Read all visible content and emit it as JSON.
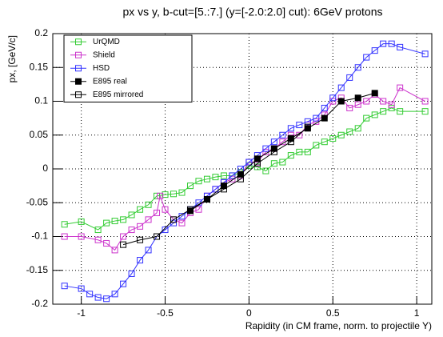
{
  "chart_data": {
    "type": "line",
    "title": "px vs y, b-cut=[5.:7.] (y=[-2.0:2.0] cut): 6GeV protons",
    "xlabel": "Rapidity (in CM frame, norm. to projectile Y)",
    "ylabel": "px, [GeV/c]",
    "xlim": [
      -1.17,
      1.09
    ],
    "ylim": [
      -0.2,
      0.2
    ],
    "xticks": [
      -1,
      -0.5,
      0,
      0.5,
      1
    ],
    "yticks": [
      -0.2,
      -0.15,
      -0.1,
      -0.05,
      0,
      0.05,
      0.1,
      0.15,
      0.2
    ],
    "grid": true,
    "legend": "upper left",
    "series": [
      {
        "name": "UrQMD",
        "color": "#33cc33",
        "marker": "open",
        "x": [
          -1.1,
          -1.0,
          -0.9,
          -0.85,
          -0.8,
          -0.75,
          -0.7,
          -0.65,
          -0.6,
          -0.55,
          -0.5,
          -0.45,
          -0.4,
          -0.35,
          -0.3,
          -0.25,
          -0.2,
          -0.15,
          -0.1,
          -0.05,
          0,
          0.05,
          0.1,
          0.15,
          0.2,
          0.25,
          0.3,
          0.35,
          0.4,
          0.45,
          0.5,
          0.55,
          0.6,
          0.65,
          0.7,
          0.75,
          0.8,
          0.85,
          0.9,
          1.05
        ],
        "values": [
          -0.082,
          -0.078,
          -0.09,
          -0.08,
          -0.077,
          -0.075,
          -0.068,
          -0.06,
          -0.053,
          -0.04,
          -0.038,
          -0.037,
          -0.035,
          -0.025,
          -0.018,
          -0.015,
          -0.012,
          -0.01,
          -0.01,
          -0.005,
          0.005,
          0.003,
          -0.003,
          0.008,
          0.01,
          0.02,
          0.025,
          0.025,
          0.035,
          0.04,
          0.045,
          0.05,
          0.055,
          0.06,
          0.075,
          0.08,
          0.085,
          0.09,
          0.085,
          0.085
        ]
      },
      {
        "name": "Shield",
        "color": "#cc33cc",
        "marker": "open",
        "x": [
          -1.1,
          -1.0,
          -0.9,
          -0.85,
          -0.8,
          -0.75,
          -0.7,
          -0.65,
          -0.6,
          -0.55,
          -0.53,
          -0.5,
          -0.45,
          -0.4,
          -0.35,
          -0.3,
          -0.25,
          -0.2,
          -0.15,
          -0.1,
          -0.05,
          0,
          0.05,
          0.1,
          0.15,
          0.2,
          0.25,
          0.3,
          0.35,
          0.4,
          0.45,
          0.5,
          0.55,
          0.6,
          0.65,
          0.7,
          0.75,
          0.8,
          0.85,
          0.9,
          1.05
        ],
        "values": [
          -0.1,
          -0.1,
          -0.105,
          -0.11,
          -0.12,
          -0.1,
          -0.09,
          -0.085,
          -0.075,
          -0.065,
          -0.04,
          -0.06,
          -0.075,
          -0.08,
          -0.065,
          -0.06,
          -0.04,
          -0.03,
          -0.02,
          -0.015,
          -0.01,
          0.01,
          0.01,
          0.025,
          0.03,
          0.04,
          0.05,
          0.05,
          0.065,
          0.07,
          0.08,
          0.1,
          0.105,
          0.09,
          0.095,
          0.1,
          0.11,
          0.1,
          0.095,
          0.12,
          0.1
        ]
      },
      {
        "name": "HSD",
        "color": "#3333ff",
        "marker": "open",
        "x": [
          -1.1,
          -1.0,
          -0.95,
          -0.9,
          -0.85,
          -0.8,
          -0.75,
          -0.7,
          -0.65,
          -0.6,
          -0.55,
          -0.5,
          -0.45,
          -0.4,
          -0.35,
          -0.3,
          -0.25,
          -0.2,
          -0.15,
          -0.1,
          -0.05,
          0,
          0.05,
          0.1,
          0.15,
          0.2,
          0.25,
          0.3,
          0.35,
          0.4,
          0.45,
          0.5,
          0.55,
          0.6,
          0.65,
          0.7,
          0.75,
          0.8,
          0.85,
          0.9,
          1.05
        ],
        "values": [
          -0.173,
          -0.177,
          -0.185,
          -0.19,
          -0.192,
          -0.185,
          -0.17,
          -0.155,
          -0.135,
          -0.12,
          -0.1,
          -0.09,
          -0.08,
          -0.07,
          -0.06,
          -0.05,
          -0.04,
          -0.03,
          -0.02,
          -0.01,
          0,
          0.01,
          0.02,
          0.03,
          0.04,
          0.05,
          0.06,
          0.065,
          0.07,
          0.075,
          0.09,
          0.105,
          0.12,
          0.135,
          0.15,
          0.165,
          0.175,
          0.185,
          0.185,
          0.18,
          0.17
        ]
      },
      {
        "name": "E895 real",
        "color": "#000000",
        "marker": "filled",
        "x": [
          -0.35,
          -0.25,
          -0.15,
          -0.05,
          0.05,
          0.15,
          0.25,
          0.35,
          0.45,
          0.55,
          0.65,
          0.75
        ],
        "values": [
          -0.062,
          -0.045,
          -0.025,
          -0.008,
          0.015,
          0.03,
          0.045,
          0.06,
          0.075,
          0.1,
          0.105,
          0.112
        ]
      },
      {
        "name": "E895 mirrored",
        "color": "#000000",
        "marker": "open",
        "x": [
          -0.75,
          -0.65,
          -0.55,
          -0.45,
          -0.35,
          -0.25,
          -0.15,
          -0.05,
          0.05,
          0.15,
          0.25,
          0.35
        ],
        "values": [
          -0.112,
          -0.105,
          -0.1,
          -0.075,
          -0.06,
          -0.045,
          -0.03,
          -0.015,
          0.008,
          0.025,
          0.04,
          0.062
        ]
      }
    ]
  }
}
